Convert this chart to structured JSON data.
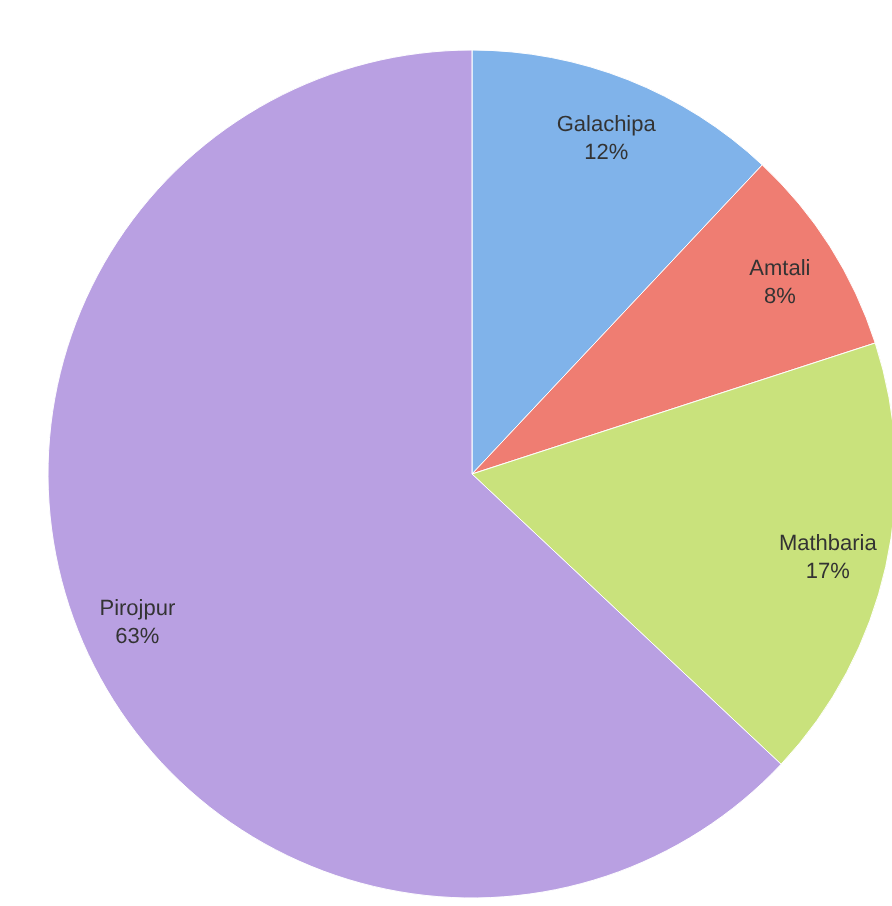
{
  "chart_data": {
    "type": "pie",
    "categories": [
      "Galachipa",
      "Amtali",
      "Mathbaria",
      "Pirojpur"
    ],
    "values": [
      12,
      8,
      17,
      63
    ],
    "colors": [
      "#80b3ea",
      "#ef7d72",
      "#c9e27c",
      "#b9a0e2"
    ],
    "value_labels": [
      "12%",
      "8%",
      "17%",
      "63%"
    ]
  }
}
